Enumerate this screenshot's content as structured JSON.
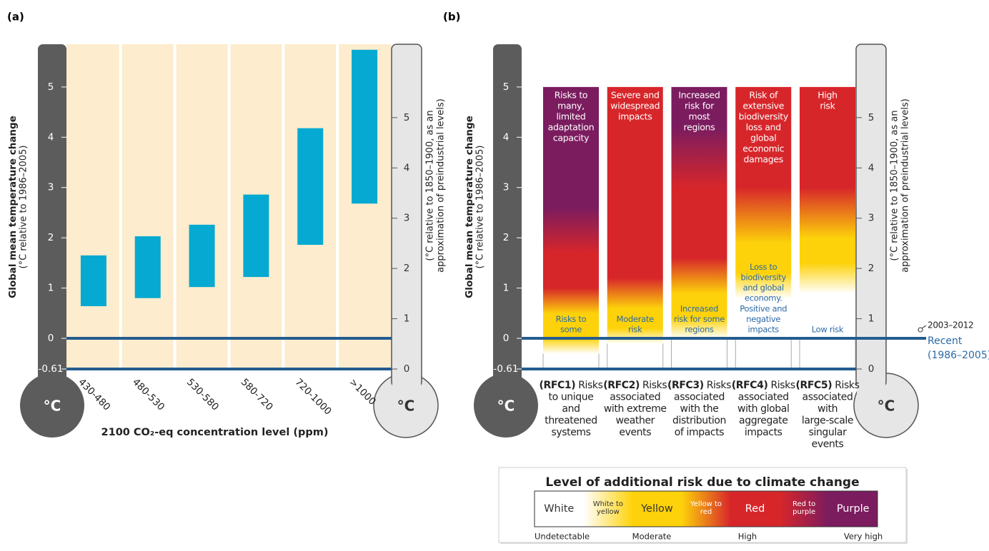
{
  "chart_data": [
    {
      "type": "range-bar",
      "label": "(a)",
      "ylabel": "Global mean temperature change",
      "ylabel_note": "(°C relative to 1986–2005)",
      "y2label_lines": [
        "(°C relative to 1850–1900, as an",
        "approximation of preindustrial levels)"
      ],
      "axis_unit": "°C",
      "xlabel": "2100 CO₂-eq concentration level (ppm)",
      "categories": [
        "430-480",
        "480-530",
        "530-580",
        "580-720",
        "720-1000",
        ">1000"
      ],
      "values": [
        [
          0.64,
          1.65
        ],
        [
          0.8,
          2.03
        ],
        [
          1.02,
          2.26
        ],
        [
          1.22,
          2.86
        ],
        [
          1.86,
          4.18
        ],
        [
          2.68,
          5.74
        ]
      ],
      "color": "#06a9d1",
      "ylim": [
        -0.61,
        5.85
      ],
      "yticks": [
        -0.61,
        0,
        1,
        2,
        3,
        4,
        5
      ],
      "y2lim": [
        0,
        6.46
      ],
      "y2ticks": [
        0,
        1,
        2,
        3,
        4,
        5
      ]
    },
    {
      "type": "risk-columns",
      "label": "(b)",
      "ylabel": "Global mean temperature change",
      "ylabel_note": "(°C relative to 1986–2005)",
      "y2label_lines": [
        "(°C relative to 1850–1900, as an",
        "approximation of preindustrial levels)"
      ],
      "axis_unit": "°C",
      "ylim": [
        -0.61,
        5.85
      ],
      "yticks": [
        -0.61,
        0,
        1,
        2,
        3,
        4,
        5
      ],
      "y2lim": [
        0,
        6.46
      ],
      "y2ticks": [
        0,
        1,
        2,
        3,
        4,
        5
      ],
      "columns": [
        {
          "code": "(RFC1)",
          "lines": [
            "Risks",
            "to unique",
            "and",
            "threatened",
            "systems"
          ],
          "top_label": [
            "Risks to",
            "many,",
            "limited",
            "adaptation",
            "capacity"
          ],
          "bottom_label": [
            "Risks to",
            "some"
          ],
          "stops": [
            {
              "value": -0.3,
              "color": "#ffffff"
            },
            {
              "value": 0.0,
              "color": "#fdd20a"
            },
            {
              "value": 0.5,
              "color": "#fdd20a"
            },
            {
              "value": 1.0,
              "color": "#d7262a"
            },
            {
              "value": 1.7,
              "color": "#d7262a"
            },
            {
              "value": 2.6,
              "color": "#7b1c5f"
            },
            {
              "value": 5,
              "color": "#7b1c5f"
            }
          ]
        },
        {
          "code": "(RFC2)",
          "lines": [
            "Risks",
            "associated",
            "with extreme",
            "weather",
            "events"
          ],
          "top_label": [
            "Severe and",
            "widespread",
            "impacts"
          ],
          "bottom_label": [
            "Moderate",
            "risk"
          ],
          "stops": [
            {
              "value": -0.1,
              "color": "#ffffff"
            },
            {
              "value": 0.2,
              "color": "#fdd20a"
            },
            {
              "value": 0.6,
              "color": "#fdd20a"
            },
            {
              "value": 1.2,
              "color": "#d7262a"
            },
            {
              "value": 5,
              "color": "#d7262a"
            }
          ]
        },
        {
          "code": "(RFC3)",
          "lines": [
            "Risks",
            "associated",
            "with the",
            "distribution",
            "of impacts"
          ],
          "top_label": [
            "Increased",
            "risk for",
            "most",
            "regions"
          ],
          "bottom_label": [
            "Increased",
            "risk for some",
            "regions"
          ],
          "stops": [
            {
              "value": 0.0,
              "color": "#ffffff"
            },
            {
              "value": 0.4,
              "color": "#fdd20a"
            },
            {
              "value": 0.9,
              "color": "#fdd20a"
            },
            {
              "value": 1.6,
              "color": "#d7262a"
            },
            {
              "value": 3.0,
              "color": "#d7262a"
            },
            {
              "value": 4.2,
              "color": "#7b1c5f"
            },
            {
              "value": 5,
              "color": "#7b1c5f"
            }
          ]
        },
        {
          "code": "(RFC4)",
          "lines": [
            "Risks",
            "associated",
            "with global",
            "aggregate",
            "impacts"
          ],
          "top_label": [
            "Risk of",
            "extensive",
            "biodiversity",
            "loss and",
            "global",
            "economic",
            "damages"
          ],
          "bottom_label": [
            "Loss to",
            "biodiversity",
            "and global",
            "economy.",
            "Positive and",
            "negative",
            "impacts"
          ],
          "stops": [
            {
              "value": 0.0,
              "color": "#ffffff"
            },
            {
              "value": 0.8,
              "color": "#ffffff"
            },
            {
              "value": 1.3,
              "color": "#fdd20a"
            },
            {
              "value": 1.9,
              "color": "#fdd20a"
            },
            {
              "value": 3.0,
              "color": "#d7262a"
            },
            {
              "value": 5,
              "color": "#d7262a"
            }
          ]
        },
        {
          "code": "(RFC5)",
          "lines": [
            "Risks",
            "associated",
            "with",
            "large-scale",
            "singular",
            "events"
          ],
          "top_label": [
            "High",
            "risk"
          ],
          "bottom_label": [
            "Low risk"
          ],
          "stops": [
            {
              "value": 0.0,
              "color": "#ffffff"
            },
            {
              "value": 0.9,
              "color": "#ffffff"
            },
            {
              "value": 1.5,
              "color": "#fdd20a"
            },
            {
              "value": 2.0,
              "color": "#fdd20a"
            },
            {
              "value": 3.0,
              "color": "#d7262a"
            },
            {
              "value": 5,
              "color": "#d7262a"
            }
          ]
        }
      ],
      "annotations": [
        {
          "text": "2003–2012",
          "y2": 0.78
        },
        {
          "lines": [
            "Recent",
            "(1986–2005)"
          ],
          "y": 0
        }
      ],
      "legend": {
        "title": "Level of additional risk due to climate change",
        "cells": [
          {
            "label": [
              "White"
            ],
            "colors": [
              "#ffffff",
              "#ffffff"
            ],
            "label_color": "#333333"
          },
          {
            "label": [
              "White to",
              "yellow"
            ],
            "colors": [
              "#ffffff",
              "#fdd20a"
            ],
            "label_color": "#333333"
          },
          {
            "label": [
              "Yellow"
            ],
            "colors": [
              "#fdd20a",
              "#fdd20a"
            ],
            "label_color": "#333333"
          },
          {
            "label": [
              "Yellow to",
              "red"
            ],
            "colors": [
              "#fdd20a",
              "#d7262a"
            ],
            "label_color": "#ffffff"
          },
          {
            "label": [
              "Red"
            ],
            "colors": [
              "#d7262a",
              "#d7262a"
            ],
            "label_color": "#ffffff"
          },
          {
            "label": [
              "Red to",
              "purple"
            ],
            "colors": [
              "#d7262a",
              "#7b1c5f"
            ],
            "label_color": "#ffffff"
          },
          {
            "label": [
              "Purple"
            ],
            "colors": [
              "#7b1c5f",
              "#7b1c5f"
            ],
            "label_color": "#ffffff"
          }
        ],
        "levels": [
          "Undetectable",
          "Moderate",
          "High",
          "Very high"
        ]
      }
    }
  ]
}
